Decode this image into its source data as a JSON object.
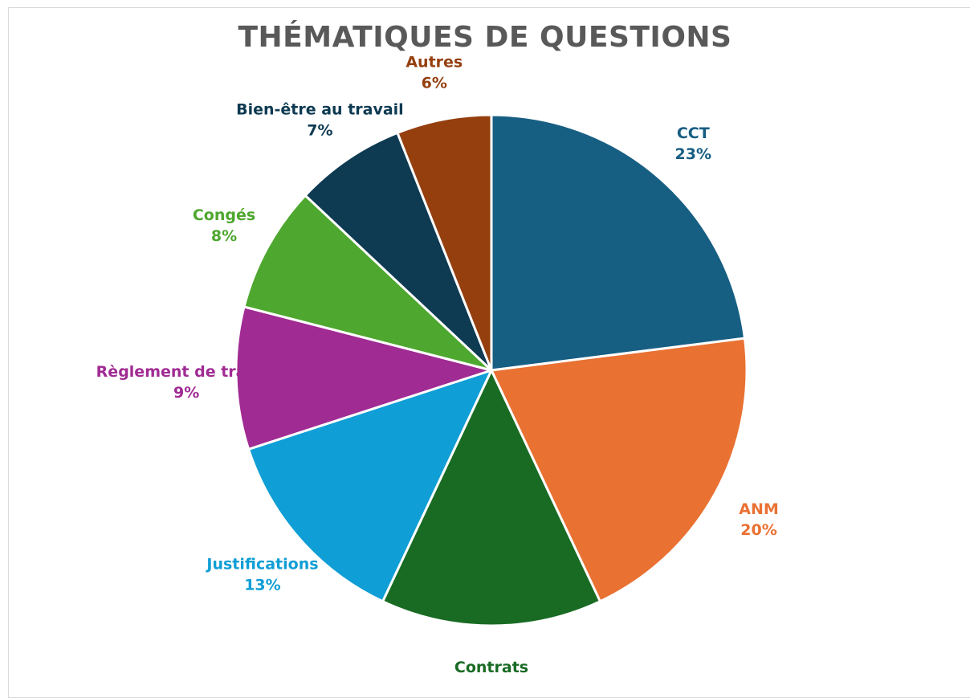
{
  "colors": {
    "frame_border": "#d9d9d9",
    "title": "#595959",
    "slice_stroke": "#ffffff"
  },
  "chart_data": {
    "type": "pie",
    "title": "THÉMATIQUES DE QUESTIONS",
    "start_angle_deg": 0,
    "direction": "clockwise",
    "slices": [
      {
        "label": "CCT",
        "value": 23,
        "pct_label": "23%",
        "color": "#175e83"
      },
      {
        "label": "ANM",
        "value": 20,
        "pct_label": "20%",
        "color": "#e97132"
      },
      {
        "label": "Contrats",
        "value": 14,
        "pct_label": "14%",
        "color": "#196b24"
      },
      {
        "label": "Justifications",
        "value": 13,
        "pct_label": "13%",
        "color": "#0f9ed5"
      },
      {
        "label": "Règlement de travail",
        "value": 9,
        "pct_label": "9%",
        "color": "#a02b93"
      },
      {
        "label": "Congés",
        "value": 8,
        "pct_label": "8%",
        "color": "#4ea72e"
      },
      {
        "label": "Bien-être au travail",
        "value": 7,
        "pct_label": "7%",
        "color": "#0e3a52"
      },
      {
        "label": "Autres",
        "value": 6,
        "pct_label": "6%",
        "color": "#953f0f"
      }
    ]
  }
}
